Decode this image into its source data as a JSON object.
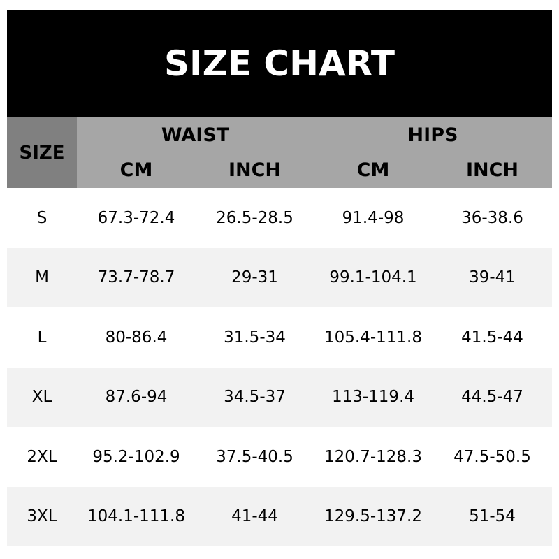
{
  "title": "SIZE CHART",
  "header": {
    "size": "SIZE",
    "groups": [
      "WAIST",
      "HIPS"
    ],
    "units": [
      "CM",
      "INCH",
      "CM",
      "INCH"
    ]
  },
  "rows": [
    [
      "S",
      "67.3-72.4",
      "26.5-28.5",
      "91.4-98",
      "36-38.6"
    ],
    [
      "M",
      "73.7-78.7",
      "29-31",
      "99.1-104.1",
      "39-41"
    ],
    [
      "L",
      "80-86.4",
      "31.5-34",
      "105.4-111.8",
      "41.5-44"
    ],
    [
      "XL",
      "87.6-94",
      "34.5-37",
      "113-119.4",
      "44.5-47"
    ],
    [
      "2XL",
      "95.2-102.9",
      "37.5-40.5",
      "120.7-128.3",
      "47.5-50.5"
    ],
    [
      "3XL",
      "104.1-111.8",
      "41-44",
      "129.5-137.2",
      "51-54"
    ]
  ],
  "colors": {
    "title_bg": "#000000",
    "size_header_bg": "#808080",
    "header_bg": "#a6a6a6",
    "alt_row_bg": "#f2f2f2"
  }
}
